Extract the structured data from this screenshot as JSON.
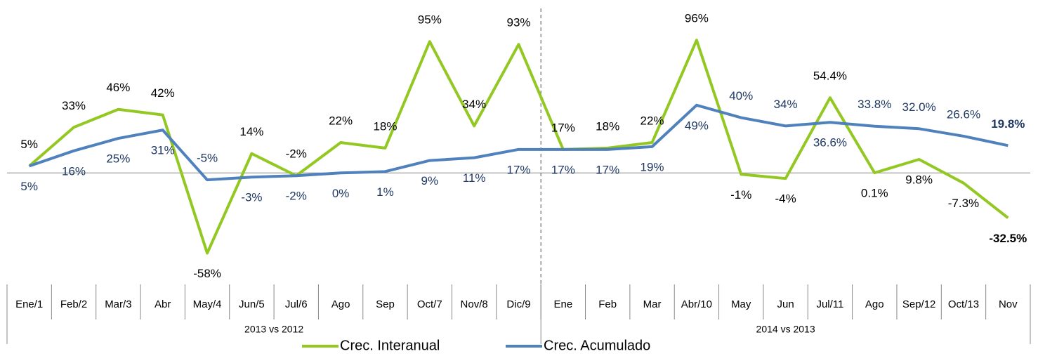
{
  "chart_data": {
    "type": "line",
    "categories": [
      "Ene/1",
      "Feb/2",
      "Mar/3",
      "Abr",
      "May/4",
      "Jun/5",
      "Jul/6",
      "Ago",
      "Sep",
      "Oct/7",
      "Nov/8",
      "Dic/9",
      "Ene",
      "Feb",
      "Mar",
      "Abr/10",
      "May",
      "Jun",
      "Jul/11",
      "Ago",
      "Sep/12",
      "Oct/13",
      "Nov"
    ],
    "groups": [
      {
        "label": "2013 vs 2012",
        "count": 12
      },
      {
        "label": "2014 vs 2013",
        "count": 11
      }
    ],
    "series": [
      {
        "name": "Crec. Interanual",
        "color": "#92c821",
        "values": [
          5,
          33,
          46,
          42,
          -58,
          14,
          -2,
          22,
          18,
          95,
          34,
          93,
          17,
          18,
          22,
          96,
          -1,
          -4,
          54.4,
          0.1,
          9.8,
          -7.3,
          -32.5
        ],
        "value_labels": [
          "5%",
          "33%",
          "46%",
          "42%",
          "-58%",
          "14%",
          "-2%",
          "22%",
          "18%",
          "95%",
          "34%",
          "93%",
          "17%",
          "18%",
          "22%",
          "96%",
          "-1%",
          "-4%",
          "54.4%",
          "0.1%",
          "9.8%",
          "-7.3%",
          "-32.5%"
        ],
        "label_color": "#000000"
      },
      {
        "name": "Crec. Acumulado",
        "color": "#4f81bd",
        "values": [
          5,
          16,
          25,
          31,
          -5,
          -3,
          -2,
          0,
          1,
          9,
          11,
          17,
          17,
          17,
          19,
          49,
          40,
          34,
          36.6,
          33.8,
          32.0,
          26.6,
          19.8
        ],
        "value_labels": [
          "5%",
          "16%",
          "25%",
          "31%",
          "-5%",
          "-3%",
          "-2%",
          "0%",
          "1%",
          "9%",
          "11%",
          "17%",
          "17%",
          "17%",
          "19%",
          "49%",
          "40%",
          "34%",
          "36.6%",
          "33.8%",
          "32.0%",
          "26.6%",
          "19.8%"
        ],
        "label_color": "#1f3864"
      }
    ],
    "ylim": [
      -75,
      120
    ]
  }
}
